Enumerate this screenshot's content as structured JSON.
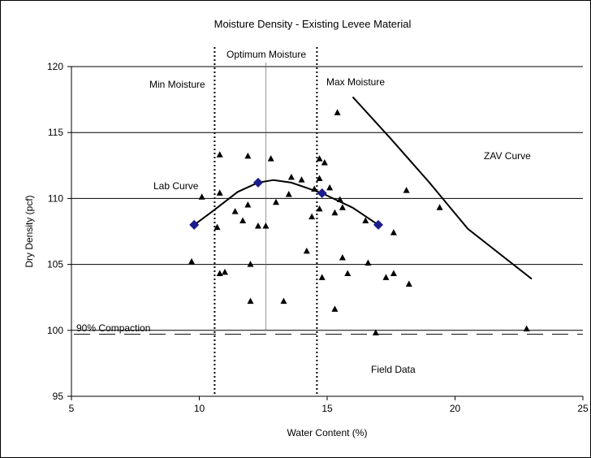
{
  "chart_data": {
    "type": "scatter",
    "title": "Moisture Density - Existing Levee Material",
    "xlabel": "Water Content (%)",
    "ylabel": "Dry Density (pcf)",
    "xlim": [
      5,
      25
    ],
    "ylim": [
      95,
      120
    ],
    "xticks": [
      "5",
      "10",
      "15",
      "20",
      "25"
    ],
    "yticks": [
      "95",
      "100",
      "105",
      "110",
      "115",
      "120"
    ],
    "grid": "horizontal",
    "legend": "none",
    "colors": {
      "lab_points": "#1c1c8c",
      "field_points": "#000000",
      "lines": "#000000"
    },
    "series": [
      {
        "name": "Field Data",
        "marker": "triangle",
        "points": [
          [
            9.7,
            105.2
          ],
          [
            10.1,
            110.1
          ],
          [
            10.7,
            107.8
          ],
          [
            10.8,
            113.3
          ],
          [
            10.8,
            110.4
          ],
          [
            10.8,
            104.3
          ],
          [
            11.0,
            104.4
          ],
          [
            11.4,
            109.0
          ],
          [
            11.7,
            108.3
          ],
          [
            11.9,
            113.2
          ],
          [
            11.9,
            109.5
          ],
          [
            12.0,
            105.0
          ],
          [
            12.0,
            102.2
          ],
          [
            12.3,
            107.9
          ],
          [
            12.6,
            107.9
          ],
          [
            12.8,
            113.0
          ],
          [
            13.0,
            109.7
          ],
          [
            13.3,
            102.2
          ],
          [
            13.5,
            110.3
          ],
          [
            13.6,
            111.6
          ],
          [
            14.0,
            111.4
          ],
          [
            14.2,
            106.0
          ],
          [
            14.4,
            108.6
          ],
          [
            14.5,
            110.7
          ],
          [
            14.7,
            109.2
          ],
          [
            14.7,
            113.0
          ],
          [
            14.7,
            111.5
          ],
          [
            14.8,
            104.0
          ],
          [
            14.9,
            112.7
          ],
          [
            15.1,
            110.8
          ],
          [
            15.3,
            108.9
          ],
          [
            15.3,
            101.6
          ],
          [
            15.4,
            116.5
          ],
          [
            15.5,
            109.9
          ],
          [
            15.6,
            109.3
          ],
          [
            15.6,
            105.5
          ],
          [
            15.8,
            104.3
          ],
          [
            16.5,
            108.3
          ],
          [
            16.6,
            105.1
          ],
          [
            16.9,
            99.8
          ],
          [
            17.3,
            104.0
          ],
          [
            17.6,
            107.4
          ],
          [
            17.6,
            104.3
          ],
          [
            18.1,
            110.6
          ],
          [
            18.2,
            103.5
          ],
          [
            19.4,
            109.3
          ],
          [
            22.8,
            100.1
          ]
        ]
      },
      {
        "name": "Lab Curve",
        "marker": "diamond",
        "points": [
          [
            9.8,
            108.0
          ],
          [
            12.3,
            111.2
          ],
          [
            14.8,
            110.4
          ],
          [
            17.0,
            108.0
          ]
        ],
        "curve": [
          [
            9.8,
            108.0
          ],
          [
            10.5,
            109.0
          ],
          [
            11.5,
            110.5
          ],
          [
            12.3,
            111.2
          ],
          [
            12.9,
            111.4
          ],
          [
            13.6,
            111.2
          ],
          [
            14.8,
            110.4
          ],
          [
            16.0,
            109.3
          ],
          [
            17.0,
            108.0
          ]
        ]
      },
      {
        "name": "ZAV Curve",
        "line": [
          [
            16.0,
            117.7
          ],
          [
            17.5,
            114.5
          ],
          [
            19.0,
            111.2
          ],
          [
            20.5,
            107.7
          ],
          [
            23.0,
            103.9
          ]
        ]
      }
    ],
    "reference_lines": [
      {
        "name": "Min Moisture",
        "axis": "x",
        "value": 10.6,
        "style": "dotted"
      },
      {
        "name": "Optimum Moisture",
        "axis": "x",
        "value": 12.6,
        "style": "solid-thin"
      },
      {
        "name": "Max Moisture",
        "axis": "x",
        "value": 14.6,
        "style": "dotted"
      },
      {
        "name": "90% Compaction",
        "axis": "y",
        "value": 99.7,
        "style": "dashed"
      }
    ],
    "annotations": {
      "optimum": "Optimum Moisture",
      "min": "Min Moisture",
      "max": "Max Moisture",
      "zav": "ZAV Curve",
      "lab": "Lab Curve",
      "compaction": "90% Compaction",
      "field": "Field Data"
    }
  }
}
